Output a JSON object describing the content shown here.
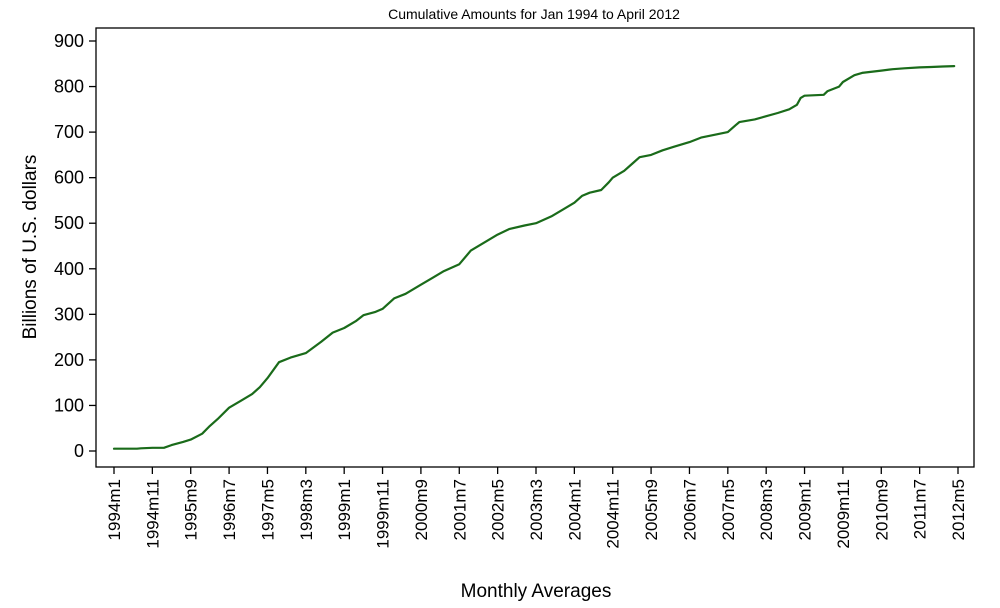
{
  "chart_data": {
    "type": "line",
    "title": "Cumulative Amounts for Jan 1994 to April 2012",
    "xlabel": "Monthly Averages",
    "ylabel": "Billions of U.S. dollars",
    "ylim": [
      0,
      900
    ],
    "y_ticks": [
      0,
      100,
      200,
      300,
      400,
      500,
      600,
      700,
      800,
      900
    ],
    "x_ticks": [
      "1994m1",
      "1994m11",
      "1995m9",
      "1996m7",
      "1997m5",
      "1998m3",
      "1999m1",
      "1999m11",
      "2000m9",
      "2001m7",
      "2002m5",
      "2003m3",
      "2004m1",
      "2004m11",
      "2005m9",
      "2006m7",
      "2007m5",
      "2008m3",
      "2009m1",
      "2009m11",
      "2010m9",
      "2011m7",
      "2012m5"
    ],
    "grid": false,
    "legend": "none",
    "series_color": "#1a6b1a",
    "series": [
      {
        "x": [
          "1994m1",
          "1994m4",
          "1994m7",
          "1994m8",
          "1994m11",
          "1995m2",
          "1995m4",
          "1995m7",
          "1995m9",
          "1995m12",
          "1996m2",
          "1996m4",
          "1996m7",
          "1996m10",
          "1997m1",
          "1997m3",
          "1997m5",
          "1997m8",
          "1997m11",
          "1998m3",
          "1998m7",
          "1998m10",
          "1999m1",
          "1999m4",
          "1999m6",
          "1999m9",
          "1999m11",
          "2000m2",
          "2000m5",
          "2000m9",
          "2000m12",
          "2001m3",
          "2001m7",
          "2001m10",
          "2002m2",
          "2002m5",
          "2002m8",
          "2002m12",
          "2003m3",
          "2003m7",
          "2003m10",
          "2004m1",
          "2004m3",
          "2004m5",
          "2004m8",
          "2004m10",
          "2004m11",
          "2005m2",
          "2005m4",
          "2005m6",
          "2005m9",
          "2005m12",
          "2006m3",
          "2006m7",
          "2006m10",
          "2007m2",
          "2007m5",
          "2007m7",
          "2007m8",
          "2007m12",
          "2008m3",
          "2008m6",
          "2008m9",
          "2008m11",
          "2008m12",
          "2009m1",
          "2009m6",
          "2009m7",
          "2009m10",
          "2009m11",
          "2010m2",
          "2010m4",
          "2010m9",
          "2010m12",
          "2011m3",
          "2011m7",
          "2011m10",
          "2012m1",
          "2012m4"
        ],
        "values": [
          5,
          5,
          5,
          6,
          7,
          7,
          13,
          20,
          25,
          38,
          55,
          70,
          95,
          110,
          125,
          140,
          160,
          195,
          205,
          215,
          240,
          260,
          270,
          285,
          298,
          305,
          312,
          335,
          345,
          365,
          380,
          395,
          410,
          440,
          460,
          475,
          487,
          495,
          500,
          515,
          530,
          545,
          560,
          567,
          573,
          590,
          600,
          615,
          630,
          645,
          650,
          660,
          668,
          678,
          688,
          695,
          700,
          715,
          722,
          728,
          735,
          742,
          750,
          760,
          775,
          780,
          782,
          790,
          800,
          810,
          825,
          830,
          835,
          838,
          840,
          842,
          843,
          844,
          845
        ]
      }
    ]
  }
}
